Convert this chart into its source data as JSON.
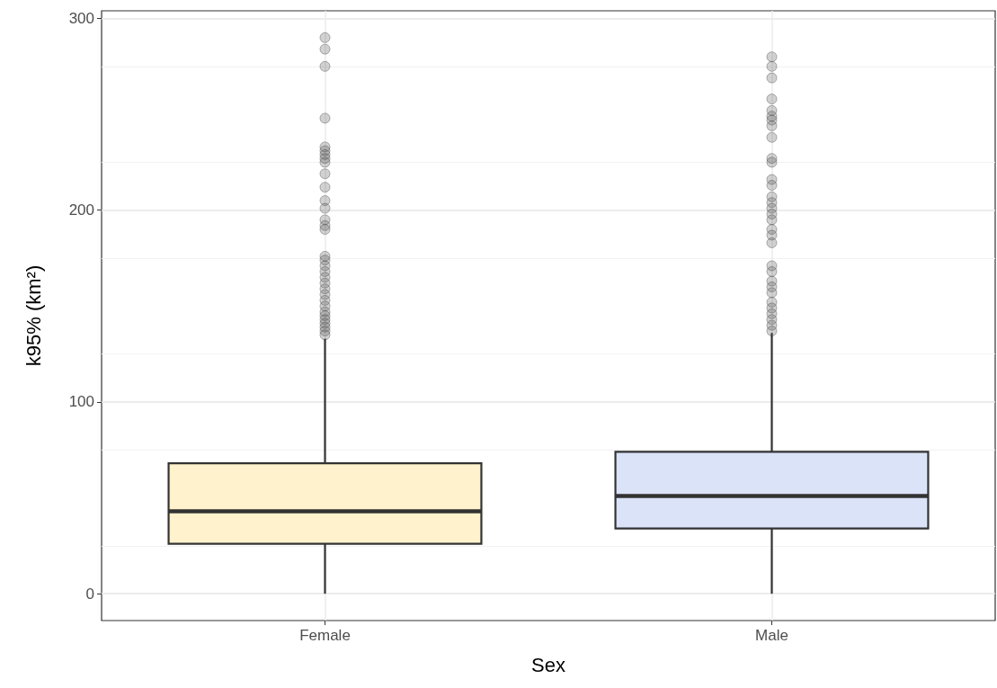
{
  "chart_data": {
    "type": "box",
    "categories": [
      "Female",
      "Male"
    ],
    "xlabel": "Sex",
    "ylabel": "k95% (km²)",
    "ylim": [
      -14,
      304
    ],
    "yticks": [
      0,
      100,
      200,
      300
    ],
    "grid": true,
    "colors": [
      "#fff2cc",
      "#dae3f8"
    ],
    "boxes": [
      {
        "low": 0,
        "q1": 26,
        "median": 43,
        "q3": 68,
        "high": 133,
        "outliers": [
          290,
          284,
          275,
          248,
          233,
          231,
          229,
          227,
          225,
          219,
          212,
          205,
          201,
          195,
          192,
          190,
          176,
          174,
          171,
          168,
          165,
          162,
          159,
          156,
          153,
          150,
          147,
          145,
          143,
          141,
          139,
          137,
          135
        ]
      },
      {
        "low": 0,
        "q1": 34,
        "median": 51,
        "q3": 74,
        "high": 136,
        "outliers": [
          280,
          275,
          269,
          258,
          252,
          249,
          247,
          244,
          238,
          227,
          225,
          216,
          213,
          207,
          204,
          201,
          198,
          195,
          190,
          187,
          183,
          171,
          168,
          163,
          160,
          157,
          152,
          149,
          146,
          143,
          140,
          137
        ]
      }
    ]
  }
}
